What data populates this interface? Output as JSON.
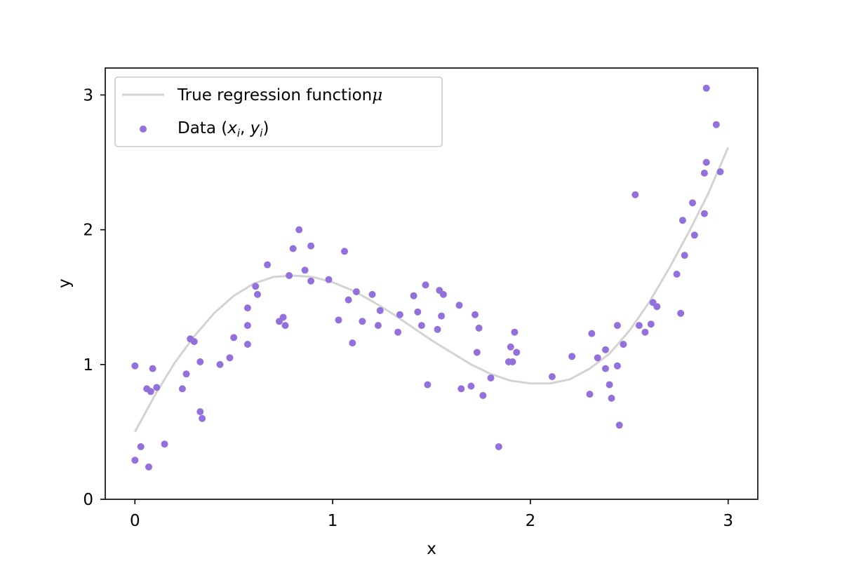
{
  "chart_data": {
    "type": "scatter",
    "title": "",
    "xlabel": "x",
    "ylabel": "y",
    "xlim": [
      -0.15,
      3.15
    ],
    "ylim": [
      0,
      3.2
    ],
    "xticks": [
      0,
      1,
      2,
      3
    ],
    "yticks": [
      0,
      1,
      2,
      3
    ],
    "xtick_labels": [
      "0",
      "1",
      "2",
      "3"
    ],
    "ytick_labels": [
      "0",
      "1",
      "2",
      "3"
    ],
    "grid": false,
    "legend_position": "upper left",
    "colors": {
      "line": "#d3d3d3",
      "points": "#9370db"
    },
    "line_series": {
      "name": "True regression function μ",
      "legend_label": "True regression function",
      "legend_symbol": "μ",
      "x": [
        0,
        0.1,
        0.2,
        0.3,
        0.4,
        0.5,
        0.6,
        0.7,
        0.8,
        0.9,
        1.0,
        1.1,
        1.2,
        1.3,
        1.4,
        1.5,
        1.6,
        1.7,
        1.8,
        1.9,
        2.0,
        2.1,
        2.2,
        2.3,
        2.4,
        2.5,
        2.6,
        2.7,
        2.8,
        2.9,
        3.0
      ],
      "y": [
        0.5,
        0.77,
        1.01,
        1.21,
        1.38,
        1.51,
        1.6,
        1.65,
        1.66,
        1.65,
        1.61,
        1.55,
        1.47,
        1.38,
        1.28,
        1.18,
        1.09,
        1.0,
        0.93,
        0.88,
        0.86,
        0.86,
        0.89,
        0.97,
        1.08,
        1.25,
        1.46,
        1.71,
        1.98,
        2.27,
        2.61
      ]
    },
    "scatter_series": {
      "name": "Data (x_i, y_i)",
      "legend_label": "Data",
      "points": [
        [
          0.0,
          0.99
        ],
        [
          0.0,
          0.29
        ],
        [
          0.03,
          0.39
        ],
        [
          0.06,
          0.82
        ],
        [
          0.07,
          0.24
        ],
        [
          0.08,
          0.8
        ],
        [
          0.09,
          0.97
        ],
        [
          0.11,
          0.83
        ],
        [
          0.15,
          0.41
        ],
        [
          0.24,
          0.82
        ],
        [
          0.26,
          0.93
        ],
        [
          0.28,
          1.19
        ],
        [
          0.3,
          1.17
        ],
        [
          0.33,
          1.02
        ],
        [
          0.33,
          0.65
        ],
        [
          0.34,
          0.6
        ],
        [
          0.43,
          1.0
        ],
        [
          0.48,
          1.05
        ],
        [
          0.5,
          1.2
        ],
        [
          0.57,
          1.15
        ],
        [
          0.57,
          1.29
        ],
        [
          0.57,
          1.42
        ],
        [
          0.61,
          1.58
        ],
        [
          0.62,
          1.52
        ],
        [
          0.67,
          1.74
        ],
        [
          0.73,
          1.32
        ],
        [
          0.75,
          1.35
        ],
        [
          0.76,
          1.29
        ],
        [
          0.78,
          1.66
        ],
        [
          0.8,
          1.86
        ],
        [
          0.83,
          2.0
        ],
        [
          0.86,
          1.7
        ],
        [
          0.89,
          1.88
        ],
        [
          0.89,
          1.62
        ],
        [
          0.98,
          1.63
        ],
        [
          1.03,
          1.33
        ],
        [
          1.06,
          1.84
        ],
        [
          1.08,
          1.48
        ],
        [
          1.1,
          1.16
        ],
        [
          1.12,
          1.54
        ],
        [
          1.15,
          1.32
        ],
        [
          1.2,
          1.52
        ],
        [
          1.23,
          1.29
        ],
        [
          1.24,
          1.4
        ],
        [
          1.33,
          1.24
        ],
        [
          1.34,
          1.37
        ],
        [
          1.41,
          1.51
        ],
        [
          1.43,
          1.39
        ],
        [
          1.45,
          1.29
        ],
        [
          1.47,
          1.59
        ],
        [
          1.48,
          0.85
        ],
        [
          1.53,
          1.26
        ],
        [
          1.54,
          1.55
        ],
        [
          1.55,
          1.36
        ],
        [
          1.56,
          1.52
        ],
        [
          1.64,
          1.44
        ],
        [
          1.65,
          0.82
        ],
        [
          1.7,
          0.84
        ],
        [
          1.72,
          1.37
        ],
        [
          1.73,
          1.09
        ],
        [
          1.74,
          1.27
        ],
        [
          1.76,
          0.77
        ],
        [
          1.8,
          0.9
        ],
        [
          1.84,
          0.39
        ],
        [
          1.89,
          1.02
        ],
        [
          1.9,
          1.13
        ],
        [
          1.91,
          1.02
        ],
        [
          1.92,
          1.24
        ],
        [
          1.93,
          1.09
        ],
        [
          2.11,
          0.91
        ],
        [
          2.21,
          1.06
        ],
        [
          2.3,
          0.78
        ],
        [
          2.31,
          1.23
        ],
        [
          2.34,
          1.05
        ],
        [
          2.38,
          1.11
        ],
        [
          2.38,
          0.97
        ],
        [
          2.4,
          0.85
        ],
        [
          2.41,
          0.75
        ],
        [
          2.44,
          1.29
        ],
        [
          2.44,
          0.99
        ],
        [
          2.45,
          0.55
        ],
        [
          2.47,
          1.15
        ],
        [
          2.53,
          2.26
        ],
        [
          2.55,
          1.29
        ],
        [
          2.58,
          1.24
        ],
        [
          2.61,
          1.3
        ],
        [
          2.62,
          1.46
        ],
        [
          2.64,
          1.43
        ],
        [
          2.74,
          1.67
        ],
        [
          2.76,
          1.38
        ],
        [
          2.77,
          2.07
        ],
        [
          2.78,
          1.81
        ],
        [
          2.82,
          2.2
        ],
        [
          2.83,
          1.96
        ],
        [
          2.88,
          2.42
        ],
        [
          2.88,
          2.12
        ],
        [
          2.89,
          2.5
        ],
        [
          2.89,
          3.05
        ],
        [
          2.94,
          2.78
        ],
        [
          2.96,
          2.43
        ]
      ]
    }
  }
}
